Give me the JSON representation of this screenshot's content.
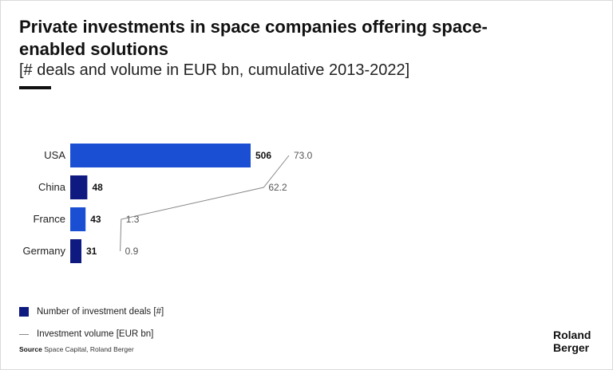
{
  "header": {
    "title": "Private investments in space companies offering space-enabled solutions",
    "subtitle": "[# deals and volume in EUR bn, cumulative 2013-2022]"
  },
  "colors": {
    "bar_primary": "#1a4fd4",
    "bar_dark": "#0e1a80",
    "line": "#888888"
  },
  "chart_data": {
    "type": "bar",
    "orientation": "horizontal",
    "categories": [
      "USA",
      "China",
      "France",
      "Germany"
    ],
    "series": [
      {
        "name": "Number of investment deals [#]",
        "type": "bar",
        "values": [
          506,
          48,
          43,
          31
        ]
      },
      {
        "name": "Investment volume [EUR bn]",
        "type": "line",
        "values": [
          73.0,
          62.2,
          1.3,
          0.9
        ]
      }
    ],
    "value_labels": [
      "506",
      "48",
      "43",
      "31"
    ],
    "volume_labels": [
      "73.0",
      "62.2",
      "1.3",
      "0.9"
    ]
  },
  "legend": {
    "deals": "Number of investment deals [#]",
    "volume": "Investment volume [EUR bn]"
  },
  "source": {
    "label": "Source",
    "text": "Space Capital, Roland Berger"
  },
  "logo": {
    "line1": "Roland",
    "line2": "Berger"
  }
}
